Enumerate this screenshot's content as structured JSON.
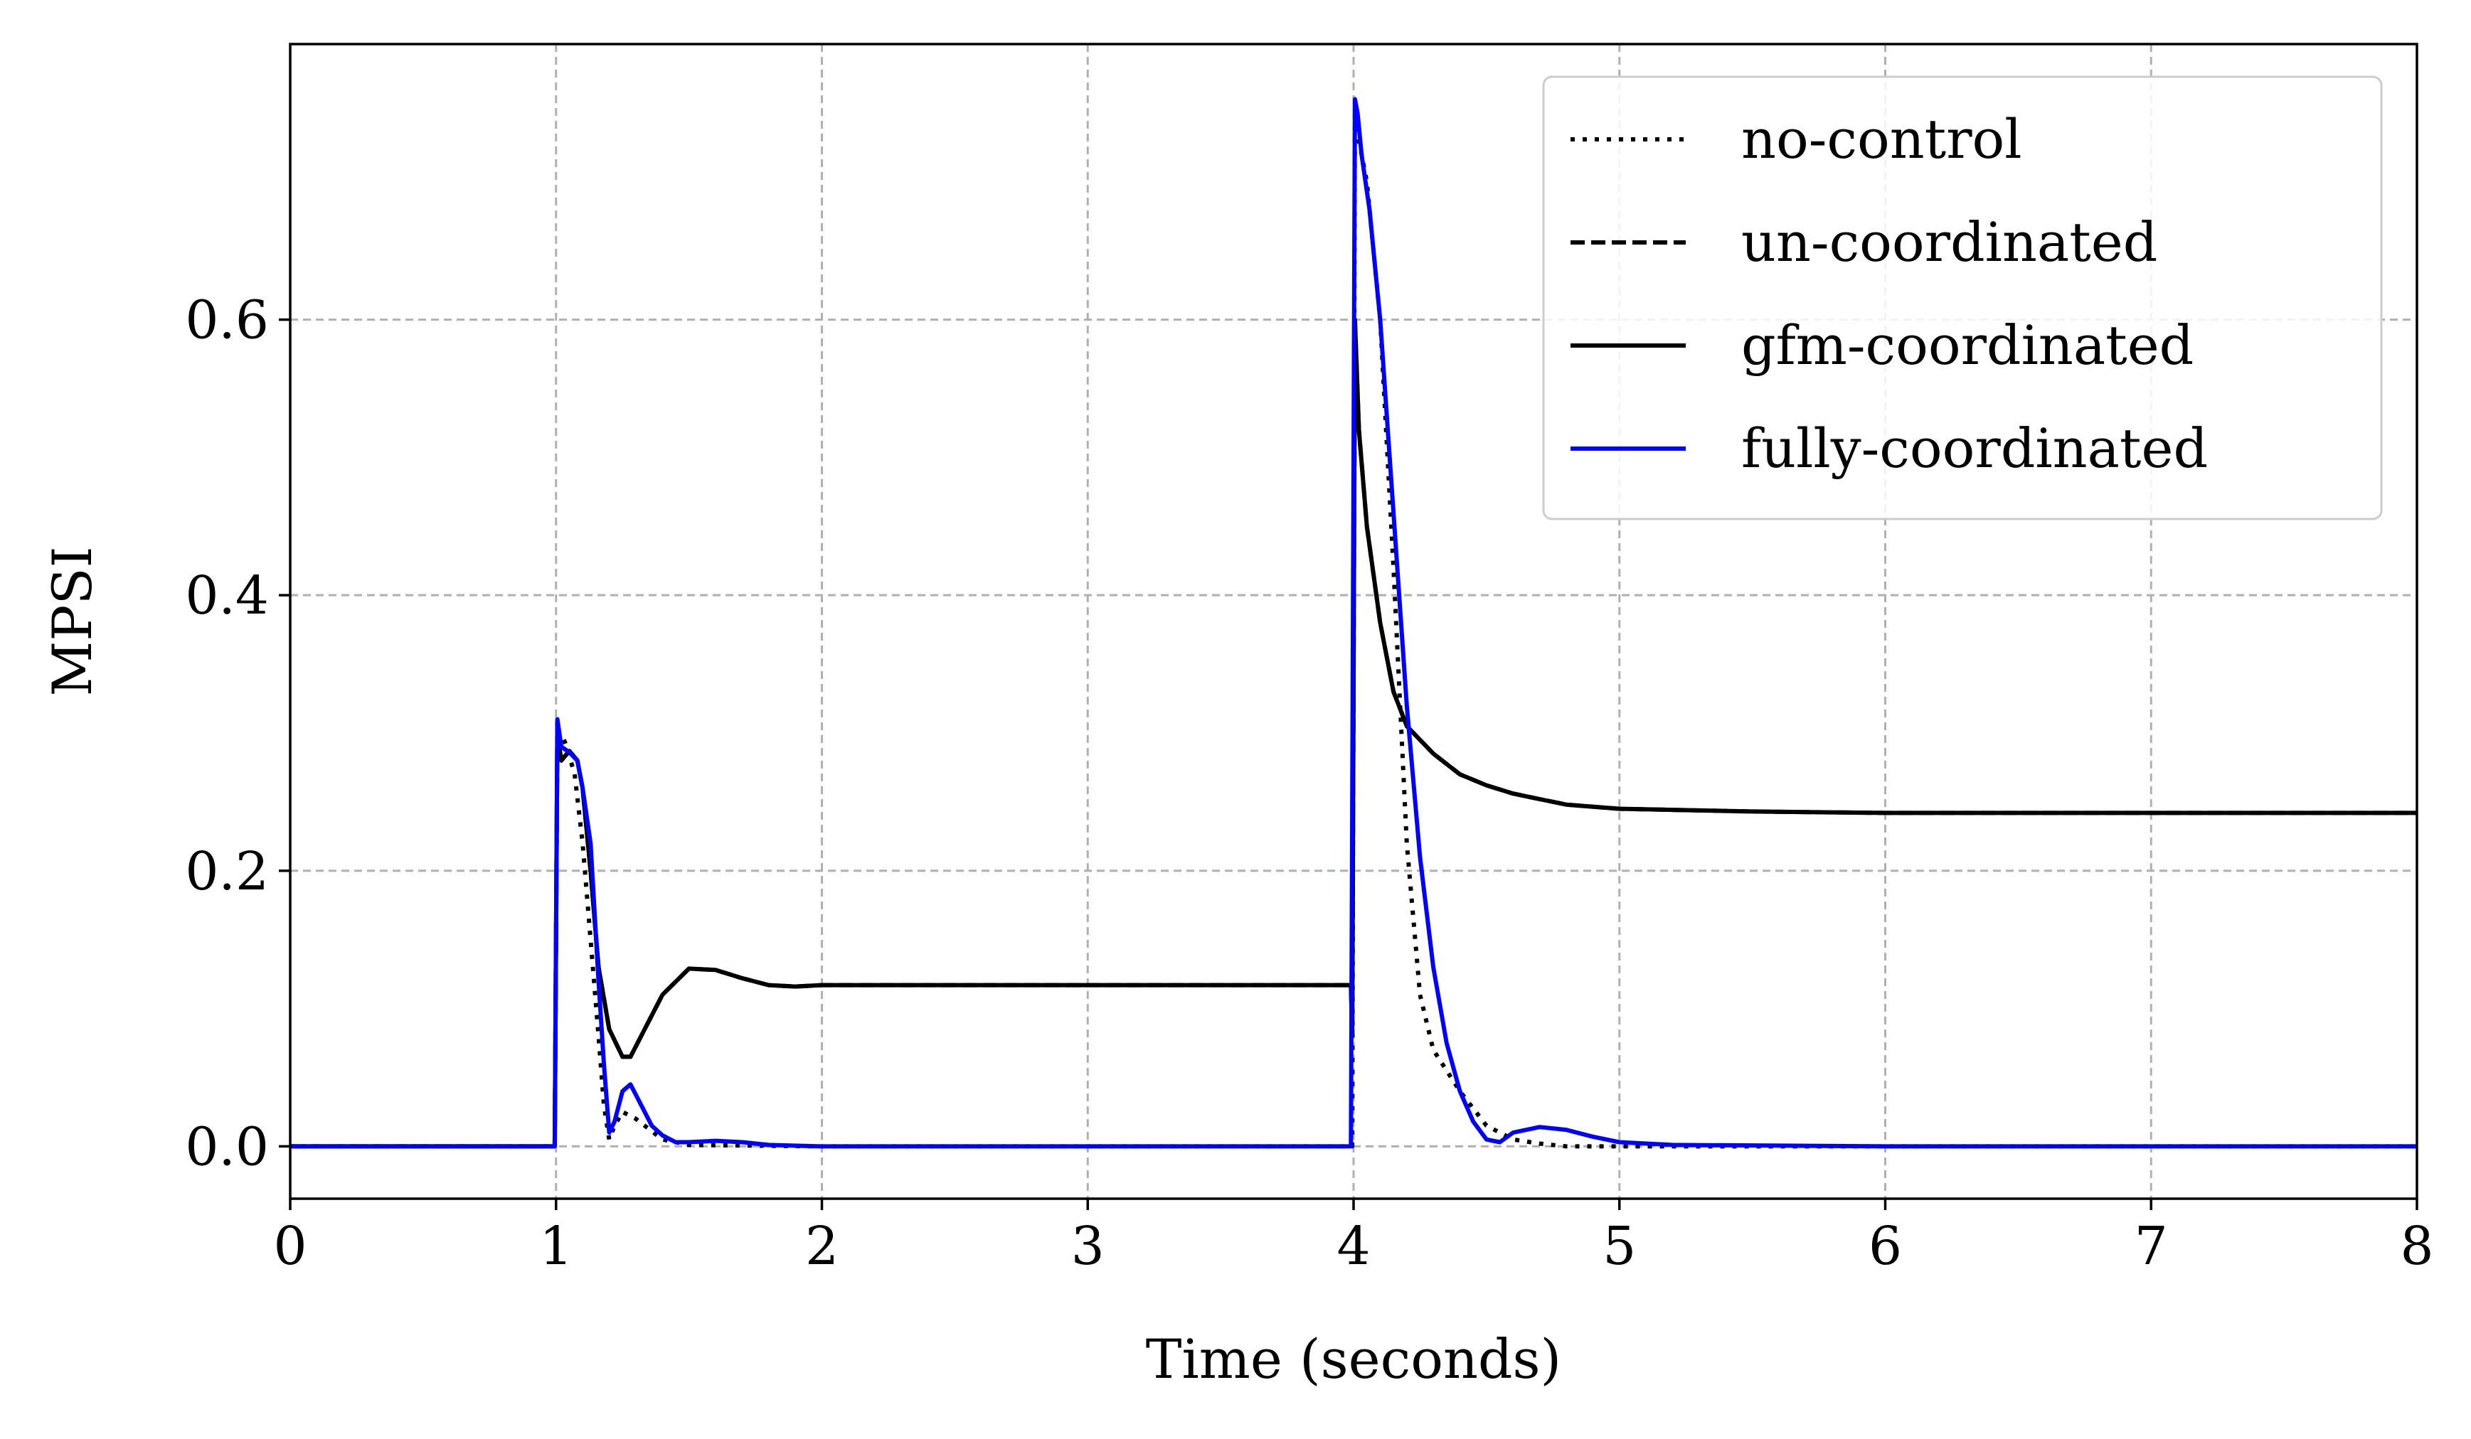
{
  "chart_data": {
    "type": "line",
    "title": "",
    "xlabel": "Time (seconds)",
    "ylabel": "MPSI",
    "xlim": [
      0,
      8
    ],
    "ylim": [
      -0.038,
      0.8
    ],
    "x_ticks": [
      0,
      1,
      2,
      3,
      4,
      5,
      6,
      7,
      8
    ],
    "y_ticks": [
      0.0,
      0.2,
      0.4,
      0.6
    ],
    "x_tick_labels": [
      "0",
      "1",
      "2",
      "3",
      "4",
      "5",
      "6",
      "7",
      "8"
    ],
    "y_tick_labels": [
      "0.0",
      "0.2",
      "0.4",
      "0.6"
    ],
    "grid": true,
    "legend_position": "top-right",
    "series": [
      {
        "name": "no-control",
        "color": "#000000",
        "style": "dotted",
        "x": [
          0,
          0.995,
          1.005,
          1.02,
          1.04,
          1.07,
          1.1,
          1.13,
          1.16,
          1.18,
          1.2,
          1.22,
          1.25,
          1.3,
          1.4,
          1.5,
          2.0,
          3.0,
          3.995,
          4.005,
          4.02,
          4.05,
          4.1,
          4.15,
          4.2,
          4.25,
          4.3,
          4.4,
          4.5,
          4.6,
          4.7,
          4.8,
          5.0,
          6.0,
          8.0
        ],
        "y": [
          0,
          0,
          0.3,
          0.3,
          0.29,
          0.27,
          0.22,
          0.15,
          0.08,
          0.03,
          0.005,
          0.015,
          0.025,
          0.02,
          0.005,
          0.001,
          0,
          0,
          0,
          0.76,
          0.73,
          0.7,
          0.6,
          0.42,
          0.22,
          0.11,
          0.07,
          0.04,
          0.015,
          0.005,
          0.002,
          0,
          0,
          0,
          0
        ]
      },
      {
        "name": "un-coordinated",
        "color": "#000000",
        "style": "dashed",
        "x": [
          0,
          0.995,
          1.005,
          1.02,
          1.05,
          1.08,
          1.1,
          1.13,
          1.16,
          1.2,
          1.25,
          1.28,
          1.32,
          1.4,
          1.5,
          1.6,
          1.7,
          1.8,
          1.9,
          2.0,
          2.5,
          3.0,
          3.5,
          3.99,
          3.995,
          4.005,
          4.02,
          4.05,
          4.1,
          4.15,
          4.2,
          4.3,
          4.4,
          4.5,
          4.6,
          4.7,
          4.8,
          5.0,
          5.5,
          6.0,
          7.0,
          8.0
        ],
        "y": [
          0,
          0,
          0.3,
          0.28,
          0.287,
          0.28,
          0.26,
          0.2,
          0.13,
          0.085,
          0.065,
          0.065,
          0.08,
          0.11,
          0.129,
          0.128,
          0.122,
          0.117,
          0.116,
          0.117,
          0.117,
          0.117,
          0.117,
          0.117,
          0.08,
          0.6,
          0.52,
          0.45,
          0.38,
          0.33,
          0.305,
          0.285,
          0.27,
          0.262,
          0.256,
          0.252,
          0.248,
          0.245,
          0.243,
          0.242,
          0.242,
          0.242
        ]
      },
      {
        "name": "gfm-coordinated",
        "color": "#000000",
        "style": "solid",
        "x": [
          0,
          0.995,
          1.005,
          1.02,
          1.05,
          1.08,
          1.1,
          1.13,
          1.16,
          1.2,
          1.25,
          1.28,
          1.32,
          1.4,
          1.5,
          1.6,
          1.7,
          1.8,
          1.9,
          2.0,
          2.5,
          3.0,
          3.5,
          3.99,
          3.995,
          4.005,
          4.02,
          4.05,
          4.1,
          4.15,
          4.2,
          4.3,
          4.4,
          4.5,
          4.6,
          4.7,
          4.8,
          5.0,
          5.5,
          6.0,
          7.0,
          8.0
        ],
        "y": [
          0,
          0,
          0.3,
          0.28,
          0.287,
          0.28,
          0.26,
          0.2,
          0.13,
          0.085,
          0.065,
          0.065,
          0.08,
          0.11,
          0.129,
          0.128,
          0.122,
          0.117,
          0.116,
          0.117,
          0.117,
          0.117,
          0.117,
          0.117,
          0.08,
          0.6,
          0.52,
          0.45,
          0.38,
          0.33,
          0.305,
          0.285,
          0.27,
          0.262,
          0.256,
          0.252,
          0.248,
          0.245,
          0.243,
          0.242,
          0.242,
          0.242
        ]
      },
      {
        "name": "fully-coordinated",
        "color": "#0000ff",
        "style": "solid",
        "x": [
          0,
          0.995,
          1.005,
          1.02,
          1.05,
          1.08,
          1.1,
          1.13,
          1.16,
          1.18,
          1.2,
          1.22,
          1.25,
          1.28,
          1.32,
          1.36,
          1.4,
          1.45,
          1.5,
          1.6,
          1.7,
          1.8,
          2.0,
          3.0,
          3.99,
          4.005,
          4.015,
          4.03,
          4.06,
          4.1,
          4.15,
          4.2,
          4.25,
          4.3,
          4.35,
          4.4,
          4.45,
          4.5,
          4.55,
          4.6,
          4.7,
          4.8,
          4.9,
          5.0,
          5.2,
          6.0,
          8.0
        ],
        "y": [
          0,
          0,
          0.31,
          0.29,
          0.286,
          0.28,
          0.26,
          0.22,
          0.12,
          0.06,
          0.01,
          0.018,
          0.04,
          0.045,
          0.03,
          0.015,
          0.008,
          0.003,
          0.003,
          0.004,
          0.003,
          0.001,
          0,
          0,
          0,
          0.76,
          0.75,
          0.72,
          0.68,
          0.6,
          0.46,
          0.32,
          0.21,
          0.13,
          0.075,
          0.04,
          0.018,
          0.005,
          0.003,
          0.01,
          0.014,
          0.012,
          0.007,
          0.003,
          0.001,
          0,
          0
        ]
      }
    ]
  }
}
